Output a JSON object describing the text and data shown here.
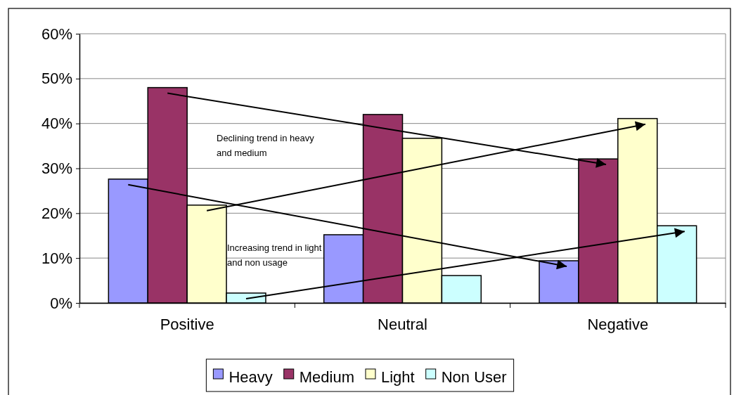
{
  "chart_data": {
    "type": "bar",
    "categories": [
      "Positive",
      "Neutral",
      "Negative"
    ],
    "series": [
      {
        "name": "Heavy",
        "color": "#9999ff",
        "values": [
          27.6,
          15.2,
          9.4
        ]
      },
      {
        "name": "Medium",
        "color": "#993366",
        "values": [
          48.0,
          42.0,
          32.1
        ]
      },
      {
        "name": "Light",
        "color": "#ffffcc",
        "values": [
          21.8,
          36.7,
          41.1
        ]
      },
      {
        "name": "Non User",
        "color": "#ccffff",
        "values": [
          2.2,
          6.1,
          17.2
        ]
      }
    ],
    "ylim": [
      0,
      60
    ],
    "yticks": [
      {
        "value": 0,
        "label": "0%"
      },
      {
        "value": 10,
        "label": "10%"
      },
      {
        "value": 20,
        "label": "20%"
      },
      {
        "value": 30,
        "label": "30%"
      },
      {
        "value": 40,
        "label": "40%"
      },
      {
        "value": 50,
        "label": "50%"
      },
      {
        "value": 60,
        "label": "60%"
      }
    ],
    "grid": "y",
    "legend": "bottom",
    "annotations": [
      "Declining trend in heavy and medium",
      "Increasing trend in light and non usage"
    ]
  }
}
